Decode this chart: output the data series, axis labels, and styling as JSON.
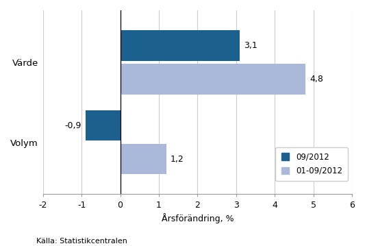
{
  "categories": [
    "Värde",
    "Volym"
  ],
  "series": [
    {
      "label": "09/2012",
      "values": [
        3.1,
        -0.9
      ],
      "color": "#1c6090"
    },
    {
      "label": "01-09/2012",
      "values": [
        4.8,
        1.2
      ],
      "color": "#aab9d9"
    }
  ],
  "xlabel": "Årsförändring, %",
  "xlim": [
    -2,
    6
  ],
  "xticks": [
    -2,
    -1,
    0,
    1,
    2,
    3,
    4,
    5,
    6
  ],
  "source": "Källa: Statistikcentralen",
  "bar_height": 0.38,
  "background_color": "#ffffff",
  "grid_color": "#cccccc"
}
